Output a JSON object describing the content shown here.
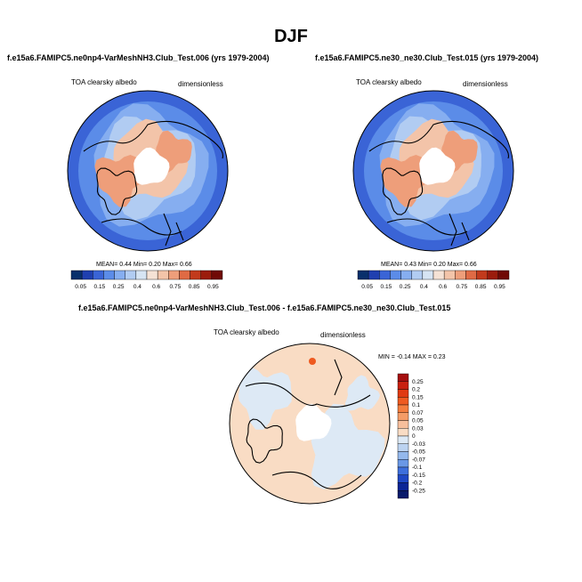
{
  "figure": {
    "title": "DJF",
    "colors": {
      "coast": "#000000",
      "bg": "#ffffff"
    }
  },
  "chart_data": [
    {
      "type": "heatmap",
      "projection": "north-polar-stereographic",
      "title": "f.e15a6.FAMIPC5.ne0np4-VarMeshNH3.Club_Test.006 (yrs 1979-2004)",
      "variable": "TOA clearsky albedo",
      "units": "dimensionless",
      "stats": {
        "mean_label": "MEAN=",
        "mean": "0.44",
        "min_label": "Min=",
        "min": "0.20",
        "max_label": "Max=",
        "max": "0.66"
      },
      "colorbar": {
        "orientation": "horizontal",
        "levels": [
          "0.05",
          "0.15",
          "0.25",
          "0.4",
          "0.6",
          "0.75",
          "0.85",
          "0.95"
        ],
        "colors": [
          "#08306b",
          "#1f3fb0",
          "#3a64d6",
          "#5b8ce8",
          "#86aef0",
          "#b1ccf2",
          "#d6e4f3",
          "#f5e2d5",
          "#f3c4a9",
          "#ee9e7a",
          "#e06a44",
          "#c23a1c",
          "#9b1c0c",
          "#700a06"
        ]
      }
    },
    {
      "type": "heatmap",
      "projection": "north-polar-stereographic",
      "title": "f.e15a6.FAMIPC5.ne30_ne30.Club_Test.015 (yrs 1979-2004)",
      "variable": "TOA clearsky albedo",
      "units": "dimensionless",
      "stats": {
        "mean_label": "MEAN=",
        "mean": "0.43",
        "min_label": "Min=",
        "min": "0.20",
        "max_label": "Max=",
        "max": "0.66"
      },
      "colorbar": {
        "orientation": "horizontal",
        "levels": [
          "0.05",
          "0.15",
          "0.25",
          "0.4",
          "0.6",
          "0.75",
          "0.85",
          "0.95"
        ],
        "colors": [
          "#08306b",
          "#1f3fb0",
          "#3a64d6",
          "#5b8ce8",
          "#86aef0",
          "#b1ccf2",
          "#d6e4f3",
          "#f5e2d5",
          "#f3c4a9",
          "#ee9e7a",
          "#e06a44",
          "#c23a1c",
          "#9b1c0c",
          "#700a06"
        ]
      }
    },
    {
      "type": "heatmap",
      "projection": "north-polar-stereographic",
      "title": "f.e15a6.FAMIPC5.ne0np4-VarMeshNH3.Club_Test.006 - f.e15a6.FAMIPC5.ne30_ne30.Club_Test.015",
      "variable": "TOA clearsky albedo",
      "units": "dimensionless",
      "stats": {
        "min_label": "MIN =",
        "min": "-0.14",
        "max_label": "MAX =",
        "max": "0.23"
      },
      "colorbar": {
        "orientation": "vertical",
        "levels": [
          "0.25",
          "0.2",
          "0.15",
          "0.1",
          "0.07",
          "0.05",
          "0.03",
          "0",
          "-0.03",
          "-0.05",
          "-0.07",
          "-0.1",
          "-0.15",
          "-0.2",
          "-0.25"
        ],
        "colors": [
          "#a50f0f",
          "#c8200f",
          "#e03a12",
          "#ee5a20",
          "#f47e3e",
          "#f59c66",
          "#f7bf9c",
          "#f9dcc4",
          "#dde9f5",
          "#bcd3f0",
          "#94b8ec",
          "#6a98e6",
          "#3e6fdc",
          "#1f47c4",
          "#0b2596",
          "#081a6b"
        ]
      }
    }
  ]
}
